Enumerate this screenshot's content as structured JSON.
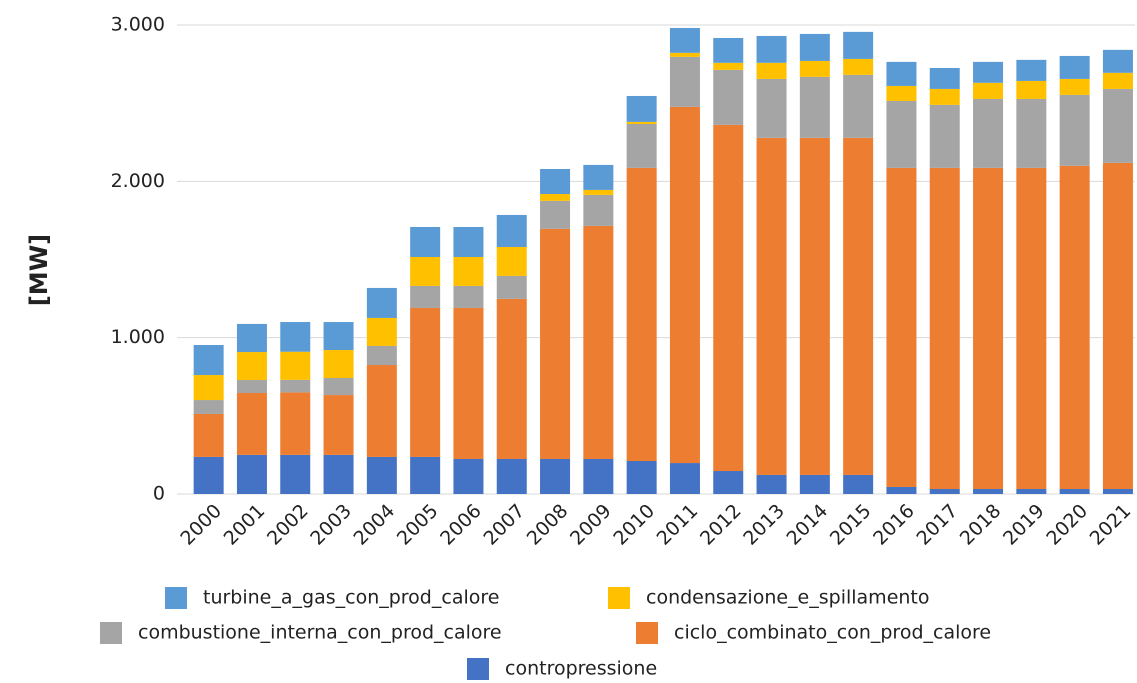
{
  "chart_data": {
    "type": "stacked_bar",
    "y_label": "[MW]",
    "categories": [
      "2000",
      "2001",
      "2002",
      "2003",
      "2004",
      "2005",
      "2006",
      "2007",
      "2008",
      "2009",
      "2010",
      "2011",
      "2012",
      "2013",
      "2014",
      "2015",
      "2016",
      "2017",
      "2018",
      "2019",
      "2020",
      "2021"
    ],
    "series": [
      {
        "name": "turbine_a_gas_con_prod_calore",
        "color": "#5b9bd5",
        "values": [
          192,
          180,
          190,
          179,
          192,
          192,
          192,
          205,
          160,
          160,
          166,
          159,
          159,
          172,
          173,
          173,
          154,
          134,
          134,
          135,
          147,
          147
        ]
      },
      {
        "name": "condensazione_e_spillamento",
        "color": "#ffc000",
        "values": [
          160,
          179,
          180,
          179,
          179,
          185,
          185,
          185,
          44,
          32,
          13,
          26,
          45,
          103,
          102,
          102,
          96,
          102,
          103,
          115,
          102,
          103
        ]
      },
      {
        "name": "combustione_interna_con_prod_calore",
        "color": "#a5a5a5",
        "values": [
          89,
          83,
          80,
          109,
          122,
          141,
          141,
          147,
          179,
          198,
          281,
          320,
          352,
          377,
          390,
          403,
          428,
          403,
          441,
          441,
          454,
          473
        ]
      },
      {
        "name": "ciclo_combinato_con_prod_calore",
        "color": "#ed7d31",
        "values": [
          275,
          396,
          400,
          383,
          588,
          953,
          966,
          1024,
          1472,
          1491,
          1875,
          2278,
          2214,
          2156,
          2156,
          2156,
          2041,
          2054,
          2054,
          2054,
          2067,
          2086
        ]
      },
      {
        "name": "contropressione",
        "color": "#4472c4",
        "values": [
          237,
          250,
          250,
          250,
          237,
          237,
          224,
          224,
          224,
          224,
          211,
          198,
          147,
          122,
          122,
          122,
          45,
          32,
          32,
          32,
          32,
          32
        ]
      }
    ],
    "ylim": [
      0,
      3000
    ],
    "yticks": [
      0,
      {
        "value": 1000,
        "label": "1.000"
      },
      {
        "value": 2000,
        "label": "2.000"
      },
      {
        "value": 3000,
        "label": "3.000"
      }
    ],
    "grid": true
  }
}
